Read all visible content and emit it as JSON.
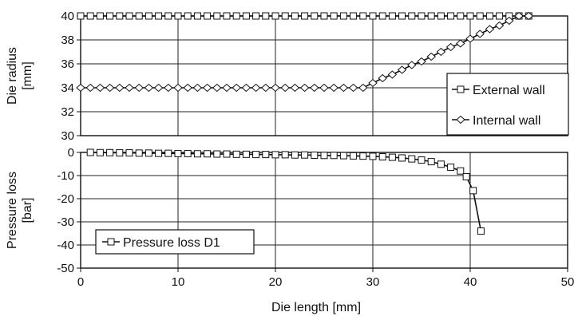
{
  "chart_data": [
    {
      "type": "line",
      "ylabel": "Die radius\n[mm]",
      "xlim": [
        0,
        50
      ],
      "ylim": [
        30,
        40
      ],
      "yticks": [
        30,
        32,
        34,
        36,
        38,
        40
      ],
      "xticks": [
        0,
        10,
        20,
        30,
        40,
        50
      ],
      "grid": true,
      "legend_position": "bottom-right",
      "series": [
        {
          "name": "External wall",
          "marker": "square",
          "x": [
            0,
            1,
            2,
            3,
            4,
            5,
            6,
            7,
            8,
            9,
            10,
            11,
            12,
            13,
            14,
            15,
            16,
            17,
            18,
            19,
            20,
            21,
            22,
            23,
            24,
            25,
            26,
            27,
            28,
            29,
            30,
            31,
            32,
            33,
            34,
            35,
            36,
            37,
            38,
            39,
            40,
            41,
            42,
            43,
            44,
            45,
            46
          ],
          "y": [
            40,
            40,
            40,
            40,
            40,
            40,
            40,
            40,
            40,
            40,
            40,
            40,
            40,
            40,
            40,
            40,
            40,
            40,
            40,
            40,
            40,
            40,
            40,
            40,
            40,
            40,
            40,
            40,
            40,
            40,
            40,
            40,
            40,
            40,
            40,
            40,
            40,
            40,
            40,
            40,
            40,
            40,
            40,
            40,
            40,
            40,
            40
          ]
        },
        {
          "name": "Internal wall",
          "marker": "diamond",
          "x": [
            0,
            1,
            2,
            3,
            4,
            5,
            6,
            7,
            8,
            9,
            10,
            11,
            12,
            13,
            14,
            15,
            16,
            17,
            18,
            19,
            20,
            21,
            22,
            23,
            24,
            25,
            26,
            27,
            28,
            29,
            30,
            31,
            32,
            33,
            34,
            35,
            36,
            37,
            38,
            39,
            40,
            41,
            42,
            43,
            44,
            45,
            46
          ],
          "y": [
            34,
            34,
            34,
            34,
            34,
            34,
            34,
            34,
            34,
            34,
            34,
            34,
            34,
            34,
            34,
            34,
            34,
            34,
            34,
            34,
            34,
            34,
            34,
            34,
            34,
            34,
            34,
            34,
            34,
            34,
            34.4,
            34.8,
            35.1,
            35.5,
            35.9,
            36.2,
            36.6,
            37.0,
            37.4,
            37.7,
            38.1,
            38.5,
            38.9,
            39.2,
            39.6,
            40.0,
            40.0
          ]
        }
      ]
    },
    {
      "type": "line",
      "xlabel": "Die length   [mm]",
      "ylabel": "Pressure loss\n[bar]",
      "xlim": [
        0,
        50
      ],
      "ylim": [
        -50,
        0
      ],
      "yticks": [
        0,
        -10,
        -20,
        -30,
        -40,
        -50
      ],
      "xticks": [
        0,
        10,
        20,
        30,
        40,
        50
      ],
      "grid": true,
      "legend_position": "bottom-left",
      "series": [
        {
          "name": "Pressure loss D1",
          "marker": "square",
          "x": [
            1,
            2,
            3,
            4,
            5,
            6,
            7,
            8,
            9,
            10,
            11,
            12,
            13,
            14,
            15,
            16,
            17,
            18,
            19,
            20,
            21,
            22,
            23,
            24,
            25,
            26,
            27,
            28,
            29,
            30,
            31,
            32,
            33,
            34,
            35,
            36,
            37,
            38,
            39,
            39.6,
            40.3,
            41.1
          ],
          "y": [
            0,
            -0.1,
            -0.1,
            -0.2,
            -0.2,
            -0.3,
            -0.3,
            -0.4,
            -0.4,
            -0.5,
            -0.5,
            -0.6,
            -0.6,
            -0.7,
            -0.7,
            -0.8,
            -0.8,
            -0.9,
            -0.9,
            -1.0,
            -1.0,
            -1.1,
            -1.1,
            -1.2,
            -1.3,
            -1.3,
            -1.4,
            -1.5,
            -1.6,
            -1.7,
            -1.9,
            -2.1,
            -2.4,
            -2.8,
            -3.3,
            -4.0,
            -5.1,
            -6.4,
            -8.0,
            -10.5,
            -16.5,
            -34.0
          ]
        }
      ]
    }
  ]
}
